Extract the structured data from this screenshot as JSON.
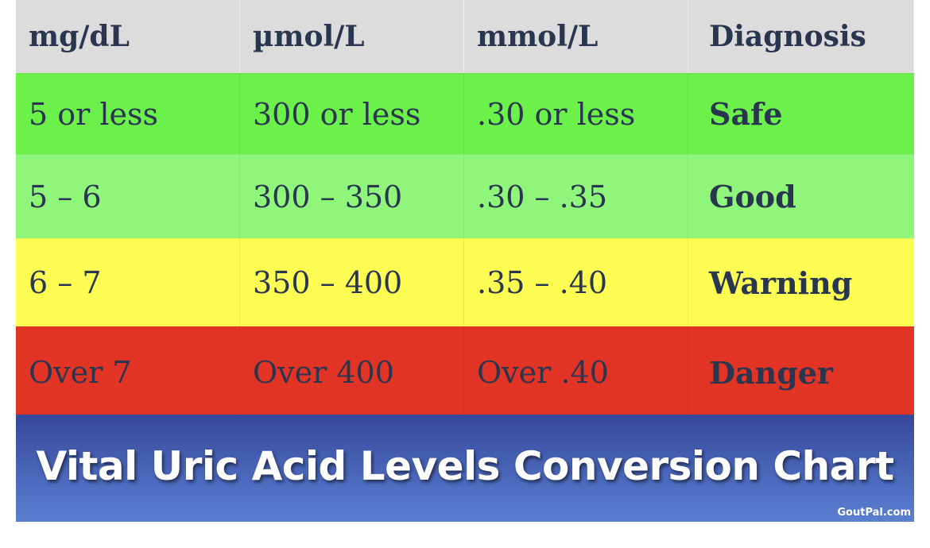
{
  "table": {
    "headers": [
      "mg/dL",
      "µmol/L",
      "mmol/L",
      "Diagnosis"
    ],
    "rows": [
      [
        "5 or less",
        "300 or less",
        ".30 or less",
        "Safe"
      ],
      [
        "5 – 6",
        "300 – 350",
        ".30 – .35",
        "Good"
      ],
      [
        "6 – 7",
        "350 – 400",
        ".35 – .40",
        "Warning"
      ],
      [
        "Over 7",
        "Over 400",
        "Over .40",
        "Danger"
      ]
    ]
  },
  "banner": {
    "title": "Vital Uric Acid Levels Conversion Chart",
    "credit": "GoutPal.com"
  }
}
